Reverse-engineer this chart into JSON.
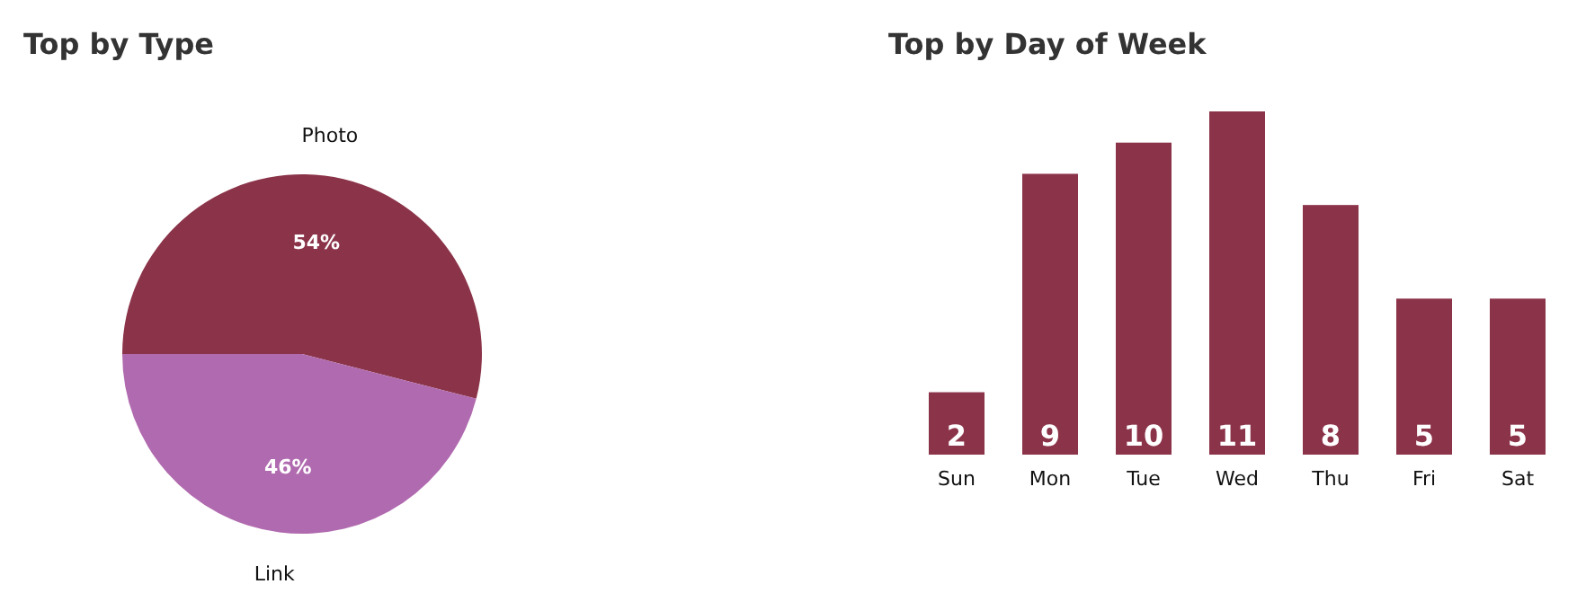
{
  "chart_data": [
    {
      "type": "pie",
      "title": "Top by Type",
      "categories": [
        "Photo",
        "Link"
      ],
      "values": [
        54,
        46
      ],
      "colors": [
        "#8b3349",
        "#b06aaf"
      ],
      "value_labels": [
        "54%",
        "46%"
      ]
    },
    {
      "type": "bar",
      "title": "Top by Day of Week",
      "categories": [
        "Sun",
        "Mon",
        "Tue",
        "Wed",
        "Thu",
        "Fri",
        "Sat"
      ],
      "values": [
        2,
        9,
        10,
        11,
        8,
        5,
        5
      ],
      "color": "#8b3349",
      "data_labels": true
    }
  ]
}
